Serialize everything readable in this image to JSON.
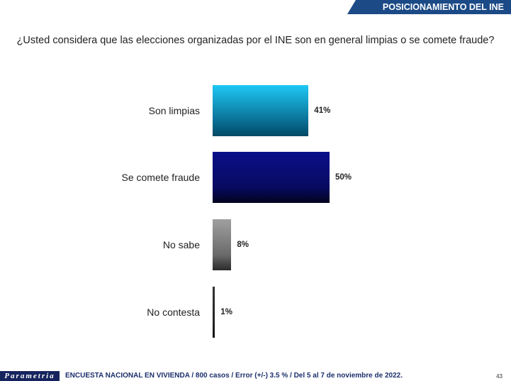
{
  "header": {
    "banner": "POSICIONAMIENTO DEL INE"
  },
  "chart_data": {
    "type": "bar",
    "orientation": "horizontal",
    "title": "¿Usted considera que las elecciones organizadas por el INE son en general limpias o se comete fraude?",
    "categories": [
      "Son limpias",
      "Se comete fraude",
      "No sabe",
      "No contesta"
    ],
    "values": [
      41,
      50,
      8,
      1
    ],
    "labels": [
      "41%",
      "50%",
      "8%",
      "1%"
    ],
    "colors": [
      "#1ec8f5",
      "#0a0f7a",
      "#909090",
      "#333333"
    ],
    "xlim": [
      0,
      100
    ],
    "grid": false
  },
  "footer": {
    "logo": "Parametria",
    "note": "ENCUESTA NACIONAL EN VIVIENDA / 800 casos / Error (+/-) 3.5 % / Del 5 al 7 de noviembre de 2022.",
    "page": "43"
  }
}
